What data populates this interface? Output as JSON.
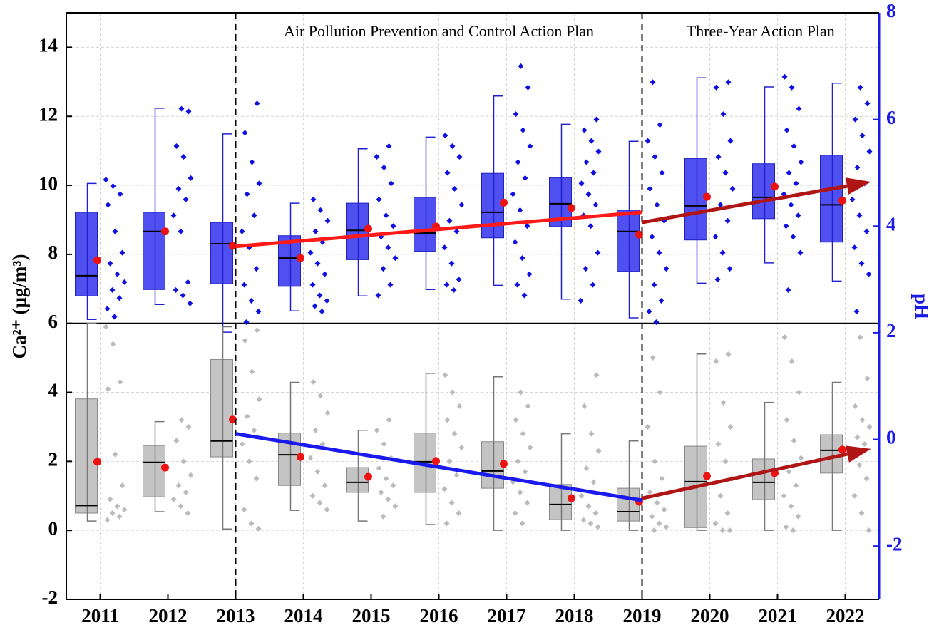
{
  "chart_data": {
    "type": "box",
    "xlim": [
      2010.5,
      2022.5
    ],
    "xticks": [
      2011,
      2012,
      2013,
      2014,
      2015,
      2016,
      2017,
      2018,
      2019,
      2020,
      2021,
      2022
    ],
    "x": [
      2011,
      2012,
      2013,
      2014,
      2015,
      2016,
      2017,
      2018,
      2019,
      2020,
      2021,
      2022
    ],
    "ylim": [
      -2,
      15
    ],
    "yticks": [
      -2,
      0,
      2,
      4,
      6,
      8,
      10,
      12,
      14
    ],
    "y2lim": [
      -3,
      8
    ],
    "y2ticks": [
      -2,
      0,
      2,
      4,
      6,
      8
    ],
    "ylabel": "Ca²⁺ (μg/m³)",
    "y2label": "pH",
    "y2color": "#1a1ae6",
    "grid": true,
    "divider": 6,
    "phase_lines": [
      2013,
      2019
    ],
    "annotations": [
      "Air Pollution Prevention and Control Action Plan",
      "Three-Year Action Plan"
    ],
    "mean_color": "#ee1111",
    "series": [
      {
        "axis": "y2",
        "color": "#1010e0",
        "box_color": "#5050f0",
        "whisker_low": [
          2.25,
          2.53,
          2.01,
          2.41,
          2.69,
          2.81,
          2.89,
          2.63,
          2.28,
          2.93,
          3.31,
          2.97
        ],
        "q1": [
          2.69,
          2.81,
          2.92,
          2.87,
          3.37,
          3.53,
          3.78,
          3.99,
          3.15,
          3.74,
          4.14,
          3.7
        ],
        "median": [
          3.07,
          3.9,
          3.67,
          3.4,
          3.92,
          3.87,
          4.26,
          4.42,
          3.9,
          4.38,
          4.54,
          4.4
        ],
        "q3": [
          4.26,
          4.26,
          4.07,
          3.82,
          4.43,
          4.54,
          4.99,
          4.91,
          4.3,
          5.27,
          5.17,
          5.33
        ],
        "whisker_high": [
          4.8,
          6.21,
          5.73,
          4.43,
          5.45,
          5.67,
          6.44,
          5.91,
          5.59,
          6.78,
          6.61,
          6.68
        ],
        "mean": [
          3.36,
          3.9,
          3.63,
          3.4,
          3.95,
          3.99,
          4.44,
          4.34,
          3.84,
          4.55,
          4.74,
          4.48
        ],
        "points": [
          [
            4.87,
            4.75,
            4.6,
            4.4,
            3.9,
            3.5,
            3.3,
            3.1,
            2.95,
            2.8,
            2.65,
            2.45,
            2.3
          ],
          [
            6.2,
            6.15,
            5.5,
            5.3,
            4.9,
            4.7,
            4.5,
            4.2,
            3.9,
            2.95,
            2.8,
            2.7,
            2.55
          ],
          [
            6.3,
            5.75,
            5.2,
            4.8,
            4.6,
            4.2,
            3.9,
            3.6,
            3.2,
            2.9,
            2.6,
            2.4,
            2.2
          ],
          [
            4.5,
            4.3,
            4.1,
            3.9,
            3.7,
            3.5,
            3.3,
            3.1,
            2.9,
            2.7,
            2.6,
            2.5,
            2.4
          ],
          [
            5.5,
            5.3,
            5.1,
            4.8,
            4.5,
            4.2,
            4.0,
            3.8,
            3.6,
            3.4,
            3.2,
            2.9,
            2.7
          ],
          [
            5.7,
            5.5,
            5.3,
            5.0,
            4.7,
            4.4,
            4.1,
            3.9,
            3.6,
            3.3,
            3.0,
            2.9,
            2.8
          ],
          [
            7.0,
            6.6,
            6.1,
            5.8,
            5.5,
            5.2,
            4.9,
            4.6,
            4.3,
            4.0,
            3.7,
            3.4,
            3.1,
            2.9,
            2.7
          ],
          [
            6.0,
            5.8,
            5.6,
            5.4,
            5.2,
            5.0,
            4.8,
            4.6,
            4.4,
            4.2,
            4.0,
            3.5,
            3.2,
            2.9,
            2.6
          ],
          [
            6.7,
            5.9,
            5.6,
            5.3,
            5.0,
            4.7,
            4.4,
            4.1,
            3.8,
            3.5,
            3.2,
            2.9,
            2.6,
            2.4,
            2.2
          ],
          [
            6.7,
            6.6,
            6.1,
            5.6,
            5.3,
            5.0,
            4.7,
            4.4,
            4.1,
            3.8,
            3.5,
            3.2,
            3.0
          ],
          [
            6.8,
            6.6,
            6.2,
            5.8,
            5.5,
            5.2,
            5.0,
            4.8,
            4.6,
            4.4,
            4.2,
            4.0,
            3.8,
            3.5,
            2.8
          ],
          [
            6.6,
            6.3,
            6.0,
            5.7,
            5.4,
            5.1,
            4.8,
            4.5,
            4.2,
            3.9,
            3.6,
            3.3,
            3.1,
            2.4
          ]
        ]
      },
      {
        "axis": "y",
        "color": "#bbbbbb",
        "box_color": "#c4c4c4",
        "whisker_low": [
          0.27,
          0.54,
          0.04,
          0.58,
          0.27,
          0.17,
          0,
          0,
          0,
          0,
          0,
          0
        ],
        "q1": [
          0.5,
          0.97,
          2.13,
          1.3,
          1.1,
          1.1,
          1.22,
          0.31,
          0.27,
          0.08,
          0.89,
          1.66
        ],
        "median": [
          0.72,
          1.97,
          2.59,
          2.19,
          1.39,
          1.99,
          1.72,
          0.75,
          0.54,
          1.41,
          1.39,
          2.32
        ],
        "q3": [
          3.81,
          2.46,
          4.95,
          2.82,
          1.82,
          2.82,
          2.57,
          1.33,
          1.22,
          2.44,
          2.07,
          2.77
        ],
        "whisker_high": [
          6.0,
          3.15,
          5.9,
          4.29,
          2.9,
          4.55,
          4.45,
          2.8,
          2.59,
          5.11,
          3.71,
          4.29
        ],
        "mean": [
          1.99,
          1.82,
          3.21,
          2.13,
          1.55,
          2.01,
          1.93,
          0.93,
          0.83,
          1.57,
          1.66,
          2.34
        ],
        "points": [
          [
            5.9,
            5.4,
            4.3,
            4.1,
            2.2,
            1.3,
            0.9,
            0.7,
            0.6,
            0.5,
            0.4,
            0.3
          ],
          [
            3.2,
            3.0,
            2.6,
            2.0,
            1.6,
            1.3,
            1.1,
            0.9,
            0.7,
            0.5
          ],
          [
            5.8,
            5.5,
            4.6,
            3.8,
            3.3,
            2.9,
            2.5,
            2.0,
            1.5,
            0.6,
            0.2,
            0.05
          ],
          [
            4.3,
            3.9,
            3.4,
            2.9,
            2.5,
            2.1,
            1.7,
            1.3,
            1.0,
            0.8,
            0.6
          ],
          [
            3.2,
            2.9,
            2.5,
            2.1,
            1.8,
            1.5,
            1.3,
            1.1,
            0.9,
            0.7,
            0.4
          ],
          [
            4.5,
            4.0,
            3.6,
            3.2,
            2.8,
            2.4,
            2.0,
            1.6,
            1.2,
            0.8,
            0.5,
            0.2
          ],
          [
            4.0,
            3.6,
            3.2,
            2.8,
            2.4,
            2.0,
            1.7,
            1.4,
            1.1,
            0.8,
            0.5,
            0.2
          ],
          [
            4.5,
            3.6,
            2.8,
            2.3,
            1.8,
            1.4,
            1.0,
            0.7,
            0.5,
            0.3,
            0.2,
            0.1
          ],
          [
            5.0,
            4.0,
            3.0,
            2.0,
            1.5,
            1.1,
            0.8,
            0.6,
            0.4,
            0.2,
            0.1,
            0.0
          ],
          [
            5.1,
            4.9,
            3.7,
            3.0,
            2.5,
            2.0,
            1.5,
            1.0,
            0.5,
            0.2,
            0.0,
            0.0
          ],
          [
            5.6,
            4.9,
            4.0,
            3.2,
            2.6,
            2.1,
            1.7,
            1.3,
            1.0,
            0.7,
            0.4,
            0.1,
            0.0
          ],
          [
            5.6,
            4.4,
            3.6,
            3.2,
            3.0,
            2.7,
            2.5,
            2.2,
            1.9,
            1.5,
            1.0,
            0.5,
            0.0
          ]
        ]
      }
    ],
    "trends": [
      {
        "axis": "y2",
        "color": "#ff1a1a",
        "arrow": false,
        "x": [
          2013,
          2019
        ],
        "y": [
          3.62,
          4.26
        ]
      },
      {
        "axis": "y2",
        "color": "#b01515",
        "arrow": true,
        "x": [
          2019,
          2022.38
        ],
        "y": [
          4.07,
          4.83
        ]
      },
      {
        "axis": "y",
        "color": "#1a1aee",
        "arrow": false,
        "x": [
          2013,
          2019
        ],
        "y": [
          2.8,
          0.87
        ]
      },
      {
        "axis": "y",
        "color": "#b01515",
        "arrow": true,
        "x": [
          2019,
          2022.38
        ],
        "y": [
          0.93,
          2.36
        ]
      }
    ]
  }
}
